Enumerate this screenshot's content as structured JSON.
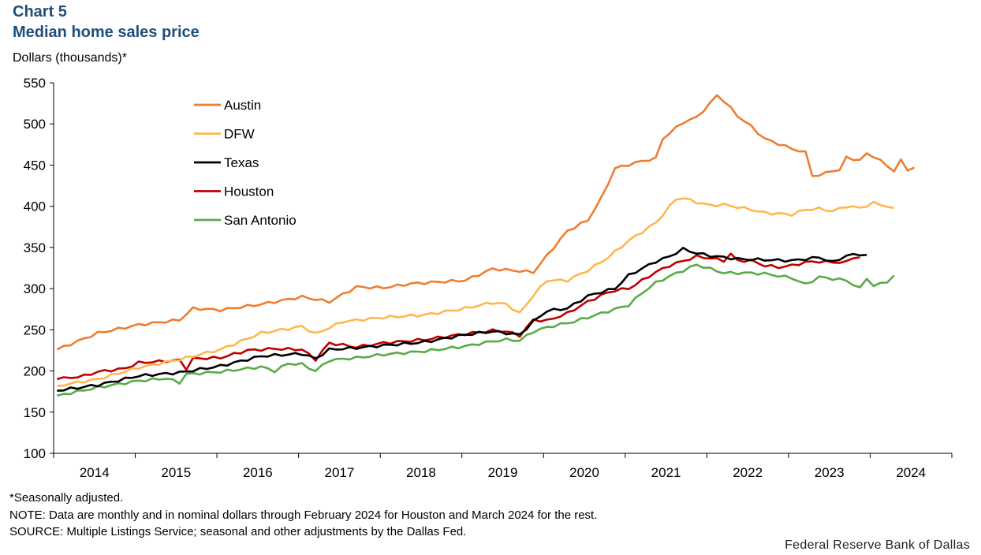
{
  "header": {
    "chart_number": "Chart 5",
    "title": "Median home sales price",
    "ylabel": "Dollars (thousands)*"
  },
  "footer": {
    "note_seasonal": "*Seasonally adjusted.",
    "note": "NOTE: Data are monthly and in nominal dollars through February 2024 for Houston and March 2024 for the rest.",
    "source": "SOURCE: Multiple Listings Service; seasonal and other adjustments by the Dallas Fed.",
    "credit": "Federal Reserve Bank of Dallas"
  },
  "chart_data": {
    "type": "line",
    "title": "Median home sales price",
    "ylabel": "Dollars (thousands)*",
    "xlabel": "",
    "ylim": [
      100,
      550
    ],
    "yticks": [
      "100",
      "150",
      "200",
      "250",
      "300",
      "350",
      "400",
      "450",
      "500",
      "550"
    ],
    "xticks": [
      "2014",
      "2015",
      "2016",
      "2017",
      "2018",
      "2019",
      "2020",
      "2021",
      "2022",
      "2023",
      "2024"
    ],
    "x_start": "2014-01",
    "legend_position": "top-left",
    "series": [
      {
        "name": "Austin",
        "color": "#ed7d31",
        "anchors": [
          [
            0,
            226
          ],
          [
            6,
            246
          ],
          [
            12,
            256
          ],
          [
            18,
            262
          ],
          [
            20,
            276
          ],
          [
            24,
            274
          ],
          [
            30,
            281
          ],
          [
            36,
            290
          ],
          [
            40,
            284
          ],
          [
            44,
            302
          ],
          [
            48,
            301
          ],
          [
            52,
            306
          ],
          [
            56,
            308
          ],
          [
            60,
            310
          ],
          [
            64,
            324
          ],
          [
            70,
            320
          ],
          [
            72,
            340
          ],
          [
            75,
            370
          ],
          [
            78,
            383
          ],
          [
            80,
            410
          ],
          [
            82,
            446
          ],
          [
            86,
            455
          ],
          [
            88,
            458
          ],
          [
            89,
            482
          ],
          [
            92,
            502
          ],
          [
            94,
            508
          ],
          [
            96,
            525
          ],
          [
            97,
            535
          ],
          [
            98,
            528
          ],
          [
            100,
            510
          ],
          [
            102,
            497
          ],
          [
            104,
            482
          ],
          [
            108,
            470
          ],
          [
            110,
            465
          ],
          [
            111,
            438
          ],
          [
            112,
            437
          ],
          [
            114,
            444
          ],
          [
            115,
            443
          ],
          [
            116,
            460
          ],
          [
            118,
            455
          ],
          [
            119,
            465
          ],
          [
            121,
            455
          ],
          [
            122,
            450
          ],
          [
            123,
            442
          ],
          [
            124,
            456
          ],
          [
            125,
            445
          ],
          [
            126,
            447
          ]
        ]
      },
      {
        "name": "DFW",
        "color": "#ffb74d",
        "anchors": [
          [
            0,
            182
          ],
          [
            6,
            190
          ],
          [
            12,
            204
          ],
          [
            18,
            214
          ],
          [
            24,
            226
          ],
          [
            30,
            246
          ],
          [
            36,
            254
          ],
          [
            38,
            245
          ],
          [
            42,
            260
          ],
          [
            48,
            265
          ],
          [
            54,
            268
          ],
          [
            60,
            276
          ],
          [
            64,
            283
          ],
          [
            66,
            281
          ],
          [
            68,
            270
          ],
          [
            70,
            292
          ],
          [
            72,
            310
          ],
          [
            75,
            310
          ],
          [
            78,
            322
          ],
          [
            81,
            338
          ],
          [
            84,
            358
          ],
          [
            88,
            380
          ],
          [
            91,
            409
          ],
          [
            92,
            410
          ],
          [
            94,
            405
          ],
          [
            96,
            401
          ],
          [
            98,
            402
          ],
          [
            102,
            396
          ],
          [
            104,
            392
          ],
          [
            108,
            390
          ],
          [
            110,
            396
          ],
          [
            112,
            397
          ],
          [
            114,
            394
          ],
          [
            116,
            400
          ],
          [
            118,
            398
          ],
          [
            120,
            404
          ],
          [
            122,
            400
          ],
          [
            123,
            398
          ]
        ]
      },
      {
        "name": "Texas",
        "color": "#000000",
        "anchors": [
          [
            0,
            176
          ],
          [
            6,
            183
          ],
          [
            12,
            194
          ],
          [
            18,
            198
          ],
          [
            24,
            206
          ],
          [
            28,
            214
          ],
          [
            30,
            218
          ],
          [
            36,
            221
          ],
          [
            38,
            215
          ],
          [
            40,
            226
          ],
          [
            44,
            228
          ],
          [
            48,
            231
          ],
          [
            54,
            235
          ],
          [
            60,
            244
          ],
          [
            64,
            248
          ],
          [
            66,
            246
          ],
          [
            68,
            244
          ],
          [
            70,
            260
          ],
          [
            72,
            273
          ],
          [
            75,
            276
          ],
          [
            78,
            291
          ],
          [
            80,
            296
          ],
          [
            82,
            300
          ],
          [
            84,
            316
          ],
          [
            88,
            333
          ],
          [
            90,
            339
          ],
          [
            92,
            348
          ],
          [
            94,
            343
          ],
          [
            96,
            340
          ],
          [
            100,
            336
          ],
          [
            104,
            335
          ],
          [
            108,
            334
          ],
          [
            110,
            336
          ],
          [
            112,
            338
          ],
          [
            114,
            332
          ],
          [
            116,
            340
          ],
          [
            118,
            342
          ],
          [
            119,
            341
          ]
        ]
      },
      {
        "name": "Houston",
        "color": "#c00000",
        "anchors": [
          [
            0,
            190
          ],
          [
            4,
            194
          ],
          [
            6,
            199
          ],
          [
            10,
            203
          ],
          [
            12,
            210
          ],
          [
            18,
            213
          ],
          [
            19,
            203
          ],
          [
            20,
            215
          ],
          [
            24,
            216
          ],
          [
            28,
            225
          ],
          [
            32,
            227
          ],
          [
            36,
            226
          ],
          [
            38,
            214
          ],
          [
            40,
            234
          ],
          [
            44,
            229
          ],
          [
            48,
            234
          ],
          [
            54,
            238
          ],
          [
            60,
            245
          ],
          [
            64,
            249
          ],
          [
            66,
            248
          ],
          [
            68,
            243
          ],
          [
            70,
            262
          ],
          [
            72,
            261
          ],
          [
            75,
            270
          ],
          [
            78,
            284
          ],
          [
            80,
            292
          ],
          [
            82,
            298
          ],
          [
            84,
            300
          ],
          [
            88,
            320
          ],
          [
            90,
            328
          ],
          [
            94,
            339
          ],
          [
            96,
            337
          ],
          [
            98,
            334
          ],
          [
            99,
            342
          ],
          [
            100,
            334
          ],
          [
            102,
            334
          ],
          [
            104,
            328
          ],
          [
            106,
            326
          ],
          [
            108,
            328
          ],
          [
            110,
            332
          ],
          [
            112,
            333
          ],
          [
            114,
            332
          ],
          [
            116,
            332
          ],
          [
            117,
            338
          ],
          [
            118,
            338
          ]
        ]
      },
      {
        "name": "San Antonio",
        "color": "#5aab46",
        "anchors": [
          [
            0,
            170
          ],
          [
            6,
            180
          ],
          [
            12,
            188
          ],
          [
            16,
            191
          ],
          [
            18,
            186
          ],
          [
            19,
            196
          ],
          [
            24,
            199
          ],
          [
            30,
            205
          ],
          [
            32,
            200
          ],
          [
            34,
            209
          ],
          [
            36,
            208
          ],
          [
            38,
            200
          ],
          [
            40,
            213
          ],
          [
            44,
            216
          ],
          [
            48,
            220
          ],
          [
            54,
            224
          ],
          [
            60,
            230
          ],
          [
            64,
            236
          ],
          [
            66,
            238
          ],
          [
            68,
            237
          ],
          [
            70,
            248
          ],
          [
            72,
            253
          ],
          [
            76,
            260
          ],
          [
            80,
            270
          ],
          [
            84,
            280
          ],
          [
            86,
            295
          ],
          [
            88,
            307
          ],
          [
            90,
            315
          ],
          [
            94,
            329
          ],
          [
            96,
            324
          ],
          [
            98,
            319
          ],
          [
            102,
            319
          ],
          [
            104,
            318
          ],
          [
            108,
            313
          ],
          [
            110,
            305
          ],
          [
            112,
            314
          ],
          [
            114,
            312
          ],
          [
            116,
            310
          ],
          [
            118,
            300
          ],
          [
            119,
            313
          ],
          [
            120,
            303
          ],
          [
            121,
            306
          ],
          [
            122,
            309
          ],
          [
            123,
            316
          ]
        ]
      }
    ]
  }
}
